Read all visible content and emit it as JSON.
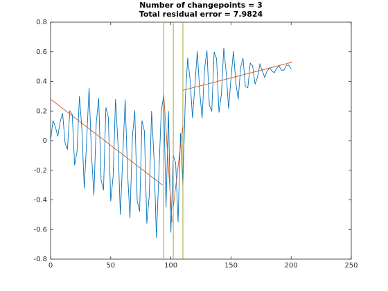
{
  "chart_data": {
    "type": "line",
    "title": "Number of changepoints = 3",
    "subtitle": "Total residual error = 7.9824",
    "xlim": [
      0,
      250
    ],
    "ylim": [
      -0.8,
      0.8
    ],
    "xticks": [
      0,
      50,
      100,
      150,
      200,
      250
    ],
    "yticks": [
      -0.8,
      -0.6,
      -0.4,
      -0.2,
      0,
      0.2,
      0.4,
      0.6,
      0.8
    ],
    "series": [
      {
        "color": "#0072bd",
        "x": [
          0,
          2,
          4,
          6,
          8,
          10,
          12,
          14,
          16,
          18,
          20,
          22,
          24,
          26,
          28,
          30,
          32,
          34,
          36,
          38,
          40,
          42,
          44,
          46,
          48,
          50,
          52,
          54,
          56,
          58,
          60,
          62,
          64,
          66,
          68,
          70,
          72,
          74,
          76,
          78,
          80,
          82,
          84,
          86,
          88,
          90,
          92,
          94,
          96,
          98,
          100,
          102,
          104,
          106,
          108,
          110,
          112,
          114,
          116,
          118,
          120,
          122,
          124,
          126,
          128,
          130,
          132,
          134,
          136,
          138,
          140,
          142,
          144,
          146,
          148,
          150,
          152,
          154,
          156,
          158,
          160,
          162,
          164,
          166,
          168,
          170,
          172,
          174,
          176,
          178,
          180,
          182,
          184,
          186,
          188,
          190,
          192,
          194,
          196,
          198,
          200
        ],
        "values": [
          0,
          0.136,
          0.094,
          0.029,
          0.128,
          0.185,
          -0.012,
          -0.06,
          0.201,
          0.177,
          -0.166,
          -0.073,
          0.3,
          0.084,
          -0.323,
          0.003,
          0.356,
          -0.089,
          -0.37,
          0.123,
          0.287,
          -0.265,
          -0.334,
          0.224,
          0.158,
          -0.409,
          -0.241,
          0.281,
          -0.016,
          -0.5,
          -0.114,
          0.278,
          -0.214,
          -0.524,
          0.021,
          0.204,
          -0.405,
          -0.479,
          0.136,
          0.064,
          -0.56,
          -0.374,
          0.201,
          -0.125,
          -0.656,
          -0.231,
          0.199,
          0.3,
          -0.45,
          0.2,
          -0.62,
          -0.1,
          -0.15,
          -0.55,
          0.05,
          -0.3,
          0.279,
          0.559,
          0.41,
          0.153,
          0.373,
          0.605,
          0.33,
          0.152,
          0.487,
          0.609,
          0.239,
          0.197,
          0.599,
          0.554,
          0.19,
          0.312,
          0.626,
          0.459,
          0.215,
          0.421,
          0.605,
          0.391,
          0.278,
          0.495,
          0.556,
          0.365,
          0.357,
          0.524,
          0.505,
          0.381,
          0.427,
          0.517,
          0.472,
          0.427,
          0.469,
          0.492,
          0.471,
          0.459,
          0.49,
          0.502,
          0.476,
          0.476,
          0.509,
          0.51,
          0.484
        ]
      }
    ],
    "fits": {
      "color": "#d95319",
      "segments": [
        {
          "x": [
            0,
            93
          ],
          "values": [
            0.28,
            -0.3
          ]
        },
        {
          "x": [
            94,
            101
          ],
          "values": [
            0.32,
            -0.55
          ]
        },
        {
          "x": [
            102,
            110
          ],
          "values": [
            -0.45,
            0.1
          ]
        },
        {
          "x": [
            110,
            201
          ],
          "values": [
            0.34,
            0.53
          ]
        }
      ]
    },
    "changepoints": {
      "color": "#9a9a1a",
      "x": [
        94,
        102,
        110
      ]
    }
  }
}
